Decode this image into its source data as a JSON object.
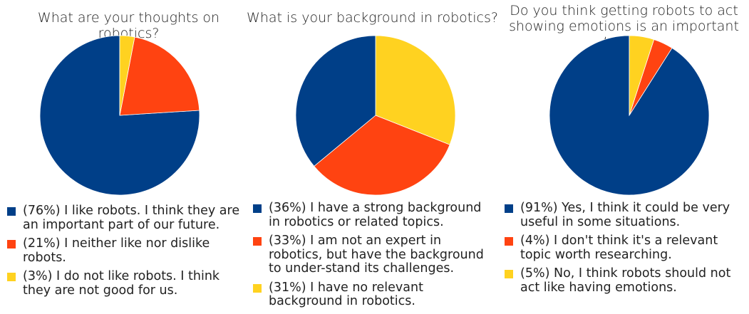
{
  "chart_data": [
    {
      "type": "pie",
      "title": "What are your thoughts on robotics?",
      "slices": [
        {
          "label": "(76%) I like robots. I think they are an important part of our future.",
          "value": 76,
          "color": "#003f88"
        },
        {
          "label": "(21%) I neither like nor dislike robots.",
          "value": 21,
          "color": "#ff4311"
        },
        {
          "label": "(3%) I do not like robots. I think they are not good for us.",
          "value": 3,
          "color": "#ffd220"
        }
      ]
    },
    {
      "type": "pie",
      "title": "What is your background in robotics?",
      "slices": [
        {
          "label": "(36%) I have a strong background in robotics or related topics.",
          "value": 36,
          "color": "#003f88"
        },
        {
          "label": "(33%) I am not an expert in robotics, but have the background to under-stand its challenges.",
          "value": 33,
          "color": "#ff4311"
        },
        {
          "label": "(31%) I have no relevant background in robotics.",
          "value": 31,
          "color": "#ffd220"
        }
      ]
    },
    {
      "type": "pie",
      "title": "Do you think getting robots to act showing emotions is an important topic?",
      "slices": [
        {
          "label": "(91%) Yes, I think it could be very useful in some situations.",
          "value": 91,
          "color": "#003f88"
        },
        {
          "label": "(4%) I don't think it's a relevant topic worth researching.",
          "value": 4,
          "color": "#ff4311"
        },
        {
          "label": "(5%) No, I think robots should not act like having emotions.",
          "value": 5,
          "color": "#ffd220"
        }
      ]
    }
  ]
}
